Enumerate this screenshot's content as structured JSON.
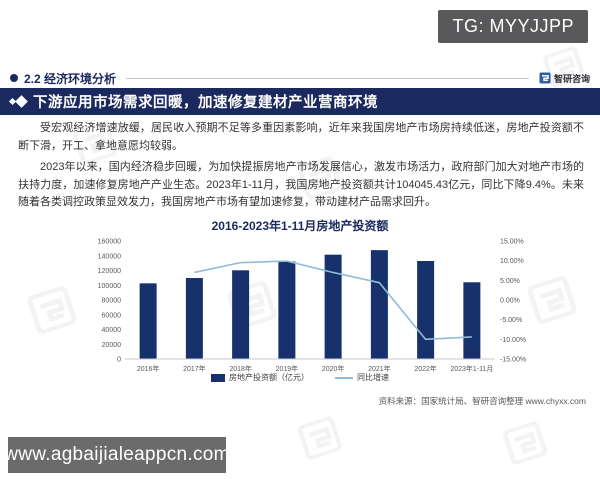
{
  "badge": {
    "text": "TG: MYYJJPP"
  },
  "header": {
    "section_title": "2.2 经济环境分析",
    "logo_text": "智研咨询"
  },
  "banner": {
    "title": "下游应用市场需求回暖，加速修复建材产业营商环境"
  },
  "paragraphs": [
    "受宏观经济增速放缓，居民收入预期不足等多重因素影响，近年来我国房地产市场房持续低迷，房地产投资额不断下滑，开工、拿地意愿均较弱。",
    "2023年以来，国内经济稳步回暖，为加快提振房地产市场发展信心，激发市场活力，政府部门加大对地产市场的扶持力度，加速修复房地产产业生态。2023年1-11月，我国房地产投资额共计104045.43亿元，同比下降9.4%。未来随着各类调控政策显效发力，我国房地产市场有望加速修复，带动建材产品需求回升。"
  ],
  "chart_data": {
    "type": "bar",
    "title": "2016-2023年1-11月房地产投资额",
    "categories": [
      "2016年",
      "2017年",
      "2018年",
      "2019年",
      "2020年",
      "2021年",
      "2022年",
      "2023年1-11月"
    ],
    "series": [
      {
        "name": "房地产投资额（亿元）",
        "type": "bar",
        "axis": "left",
        "values": [
          102581,
          109799,
          120264,
          132194,
          141443,
          147602,
          132895,
          104045.43
        ],
        "color": "#16316B"
      },
      {
        "name": "同比增速",
        "type": "line",
        "axis": "right",
        "values": [
          null,
          7.0,
          9.5,
          9.9,
          7.0,
          4.4,
          -10.0,
          -9.4
        ],
        "color": "#8FBCD9"
      }
    ],
    "left_axis": {
      "min": 0,
      "max": 160000,
      "step": 20000,
      "labels": [
        "0",
        "20000",
        "40000",
        "60000",
        "80000",
        "100000",
        "120000",
        "140000",
        "160000"
      ]
    },
    "right_axis": {
      "min": -15,
      "max": 15,
      "step": 5,
      "labels": [
        "-15.00%",
        "-10.00%",
        "-5.00%",
        "0.00%",
        "5.00%",
        "10.00%",
        "15.00%"
      ]
    },
    "legend_position": "bottom",
    "grid": false
  },
  "source": "资料来源：国家统计局、智研咨询整理  www.chyxx.com",
  "footer_watermark": "www.agbaijialeappcn.com",
  "colors": {
    "banner_bg": "#1B2A5E",
    "bar": "#16316B",
    "line": "#8FBCD9",
    "axis_text": "#595959",
    "badge_bg": "#59595B",
    "footer_wm_bg": "#6B6B6B"
  }
}
